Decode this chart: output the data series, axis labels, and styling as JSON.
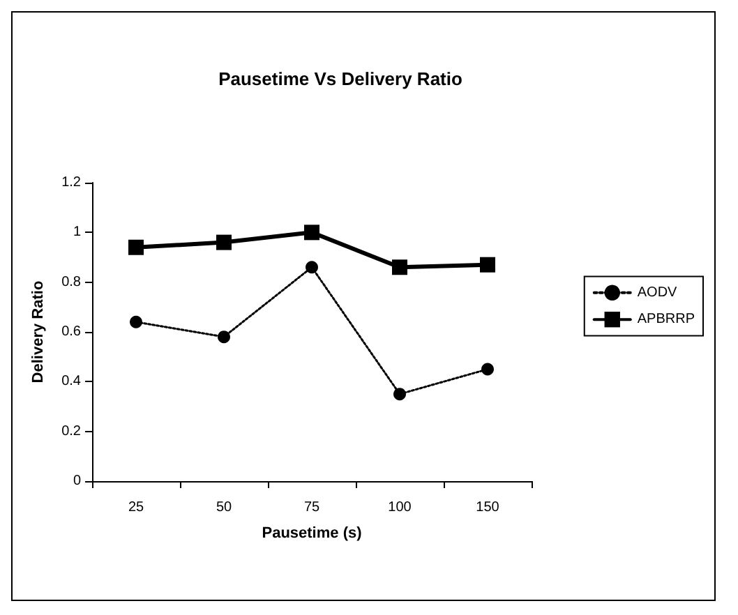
{
  "chart_data": {
    "type": "line",
    "title": "Pausetime Vs Delivery Ratio",
    "xlabel": "Pausetime (s)",
    "ylabel": "Delivery Ratio",
    "categories": [
      "25",
      "50",
      "75",
      "100",
      "150"
    ],
    "series": [
      {
        "name": "AODV",
        "color": "#000000",
        "values": [
          0.64,
          0.58,
          0.86,
          0.35,
          0.45
        ],
        "marker": "circle",
        "line_style": "dotted"
      },
      {
        "name": "APBRRP",
        "color": "#000000",
        "values": [
          0.94,
          0.96,
          1.0,
          0.86,
          0.87
        ],
        "marker": "square",
        "line_style": "solid"
      }
    ],
    "ylim": [
      0,
      1.2
    ],
    "yticks": [
      0,
      0.2,
      0.4,
      0.6,
      0.8,
      1,
      1.2
    ],
    "grid": false,
    "legend": "right"
  }
}
